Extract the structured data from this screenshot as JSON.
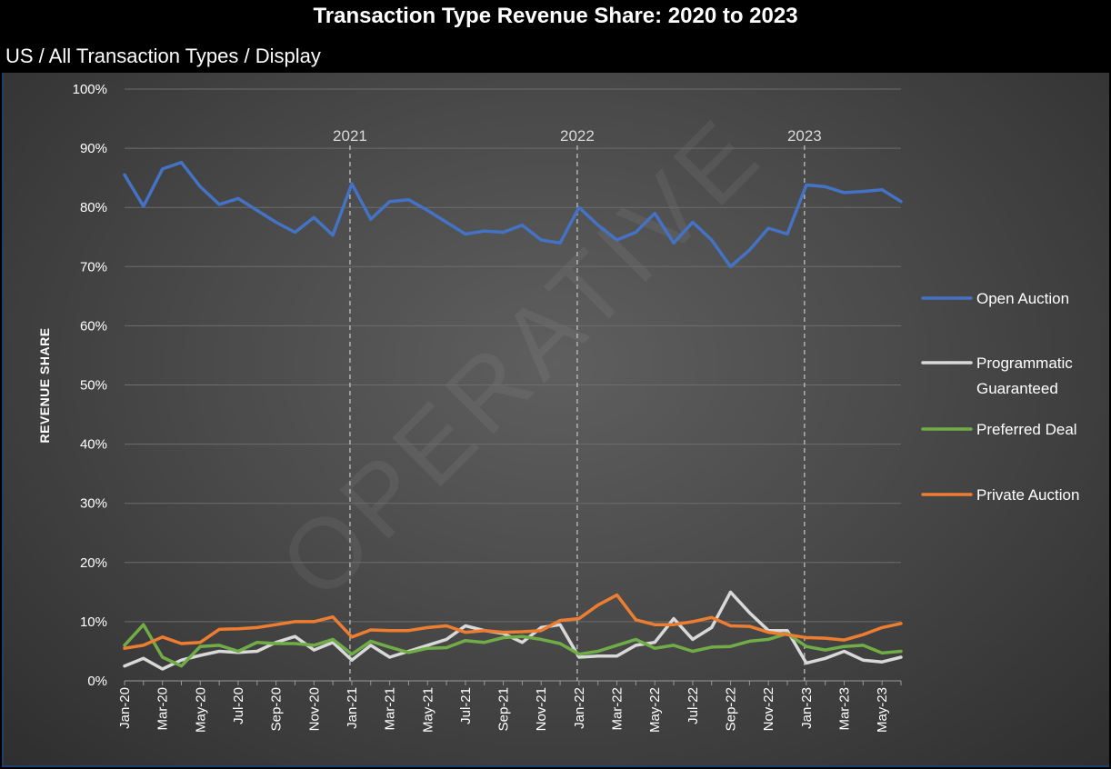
{
  "chart_data": {
    "type": "line",
    "title": "Transaction Type Revenue Share: 2020 to 2023",
    "subtitle": "US / All Transaction Types / Display",
    "ylabel": "REVENUE SHARE",
    "ylim": [
      0,
      100
    ],
    "y_ticks": [
      "0%",
      "10%",
      "20%",
      "30%",
      "40%",
      "50%",
      "60%",
      "70%",
      "80%",
      "90%",
      "100%"
    ],
    "x": [
      "Jan-20",
      "Feb-20",
      "Mar-20",
      "Apr-20",
      "May-20",
      "Jun-20",
      "Jul-20",
      "Aug-20",
      "Sep-20",
      "Oct-20",
      "Nov-20",
      "Dec-20",
      "Jan-21",
      "Feb-21",
      "Mar-21",
      "Apr-21",
      "May-21",
      "Jun-21",
      "Jul-21",
      "Aug-21",
      "Sep-21",
      "Oct-21",
      "Nov-21",
      "Dec-21",
      "Jan-22",
      "Feb-22",
      "Mar-22",
      "Apr-22",
      "May-22",
      "Jun-22",
      "Jul-22",
      "Aug-22",
      "Sep-22",
      "Oct-22",
      "Nov-22",
      "Dec-22",
      "Jan-23",
      "Feb-23",
      "Mar-23",
      "Apr-23",
      "May-23",
      "Jun-23"
    ],
    "x_tick_labels": [
      "Jan-20",
      "Mar-20",
      "May-20",
      "Jul-20",
      "Sep-20",
      "Nov-20",
      "Jan-21",
      "Mar-21",
      "May-21",
      "Jul-21",
      "Sep-21",
      "Nov-21",
      "Jan-22",
      "Mar-22",
      "May-22",
      "Jul-22",
      "Sep-22",
      "Nov-22",
      "Jan-23",
      "Mar-23",
      "May-23"
    ],
    "year_markers": [
      {
        "label": "2021",
        "x": "Jan-21"
      },
      {
        "label": "2022",
        "x": "Jan-22"
      },
      {
        "label": "2023",
        "x": "Jan-23"
      }
    ],
    "series": [
      {
        "name": "Open Auction",
        "color": "#4472c4",
        "values": [
          85.5,
          80.2,
          86.5,
          87.6,
          83.5,
          80.5,
          81.5,
          79.5,
          77.5,
          75.8,
          78.3,
          75.3,
          84.0,
          78.0,
          81.0,
          81.3,
          79.5,
          77.5,
          75.5,
          76.0,
          75.8,
          77.0,
          74.5,
          74.0,
          80.0,
          77.0,
          74.5,
          75.8,
          79.0,
          74.0,
          77.5,
          74.5,
          70.0,
          72.8,
          76.5,
          75.5,
          83.8,
          83.5,
          82.5,
          82.7,
          83.0,
          81.0
        ]
      },
      {
        "name": "Programmatic Guaranteed",
        "color": "#d9d9d9",
        "values": [
          2.5,
          3.8,
          2.0,
          3.5,
          4.3,
          5.0,
          4.8,
          5.0,
          6.5,
          7.5,
          5.2,
          6.5,
          3.5,
          6.0,
          4.0,
          5.0,
          6.0,
          7.0,
          9.3,
          8.5,
          8.0,
          6.5,
          9.0,
          9.5,
          4.0,
          4.2,
          4.2,
          6.0,
          6.5,
          10.5,
          7.0,
          9.0,
          15.0,
          11.5,
          8.5,
          8.5,
          3.0,
          3.8,
          5.0,
          3.5,
          3.2,
          4.0
        ]
      },
      {
        "name": "Preferred Deal",
        "color": "#70ad47",
        "values": [
          6.0,
          9.5,
          4.0,
          2.5,
          5.8,
          6.0,
          5.0,
          6.5,
          6.3,
          6.3,
          6.0,
          7.0,
          4.5,
          6.7,
          5.7,
          4.8,
          5.5,
          5.6,
          6.8,
          6.5,
          7.3,
          7.5,
          7.0,
          6.3,
          4.5,
          5.0,
          6.0,
          7.0,
          5.5,
          6.0,
          5.0,
          5.7,
          5.8,
          6.7,
          7.0,
          8.0,
          5.8,
          5.2,
          5.8,
          6.0,
          4.7,
          5.0
        ]
      },
      {
        "name": "Private Auction",
        "color": "#ed7d31",
        "values": [
          5.5,
          6.0,
          7.4,
          6.3,
          6.5,
          8.7,
          8.8,
          9.0,
          9.5,
          10.0,
          10.0,
          10.8,
          7.4,
          8.6,
          8.5,
          8.5,
          9.0,
          9.3,
          8.2,
          8.5,
          8.2,
          8.3,
          8.5,
          10.2,
          10.5,
          12.8,
          14.5,
          10.3,
          9.5,
          9.5,
          10.0,
          10.7,
          9.3,
          9.2,
          8.2,
          7.8,
          7.3,
          7.2,
          6.9,
          7.8,
          9.0,
          9.7
        ]
      }
    ],
    "grid": true,
    "legend": "right",
    "watermark": "OPERATIVE"
  }
}
